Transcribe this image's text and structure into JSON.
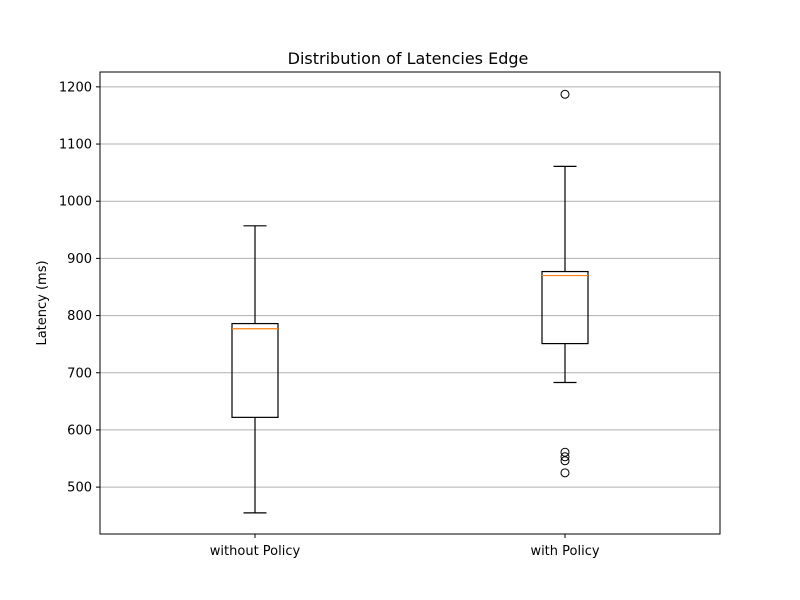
{
  "chart_data": {
    "type": "boxplot",
    "title": "Distribution of Latencies  Edge",
    "xlabel": "",
    "ylabel": "Latency (ms)",
    "categories": [
      "without Policy",
      "with Policy"
    ],
    "ylim": [
      418,
      1226
    ],
    "yticks": [
      500,
      600,
      700,
      800,
      900,
      1000,
      1100,
      1200
    ],
    "grid": "horizontal",
    "boxes": [
      {
        "label": "without Policy",
        "whisker_low": 455,
        "q1": 622,
        "median": 777,
        "q3": 786,
        "whisker_high": 957,
        "outliers": []
      },
      {
        "label": "with Policy",
        "whisker_low": 683,
        "q1": 751,
        "median": 870,
        "q3": 877,
        "whisker_high": 1061,
        "outliers": [
          1187,
          561,
          553,
          546,
          525
        ]
      }
    ],
    "colors": {
      "box": "#000000",
      "median": "#ff7f0e",
      "grid": "#b0b0b0"
    }
  }
}
